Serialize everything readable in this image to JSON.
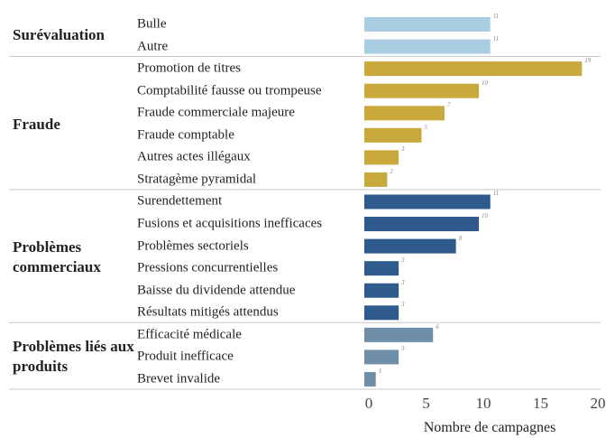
{
  "chart_data": {
    "type": "bar",
    "orientation": "horizontal",
    "xlabel": "Nombre de campagnes",
    "xlim": [
      0,
      20
    ],
    "xticks": [
      0,
      5,
      10,
      15,
      20
    ],
    "groups": [
      {
        "name": "Surévaluation",
        "color": "#a9cde1",
        "categories": [
          "Bulle",
          "Autre"
        ],
        "values": [
          11,
          11
        ]
      },
      {
        "name": "Fraude",
        "color": "#c9a93b",
        "categories": [
          "Promotion de titres",
          "Comptabilité fausse ou trompeuse",
          "Fraude commerciale majeure",
          "Fraude comptable",
          "Autres actes illégaux",
          "Stratagème pyramidal"
        ],
        "values": [
          19,
          10,
          7,
          5,
          3,
          2
        ]
      },
      {
        "name": "Problèmes commerciaux",
        "color": "#2e5b8b",
        "categories": [
          "Surendettement",
          "Fusions et acquisitions inefficaces",
          "Problèmes sectoriels",
          "Pressions concurrentielles",
          "Baisse du dividende attendue",
          "Résultats mitigés attendus"
        ],
        "values": [
          11,
          10,
          8,
          3,
          3,
          3
        ]
      },
      {
        "name": "Problèmes liés aux produits",
        "color": "#6f8fa9",
        "categories": [
          "Efficacité médicale",
          "Produit inefficace",
          "Brevet invalide"
        ],
        "values": [
          6,
          3,
          1
        ]
      }
    ]
  }
}
